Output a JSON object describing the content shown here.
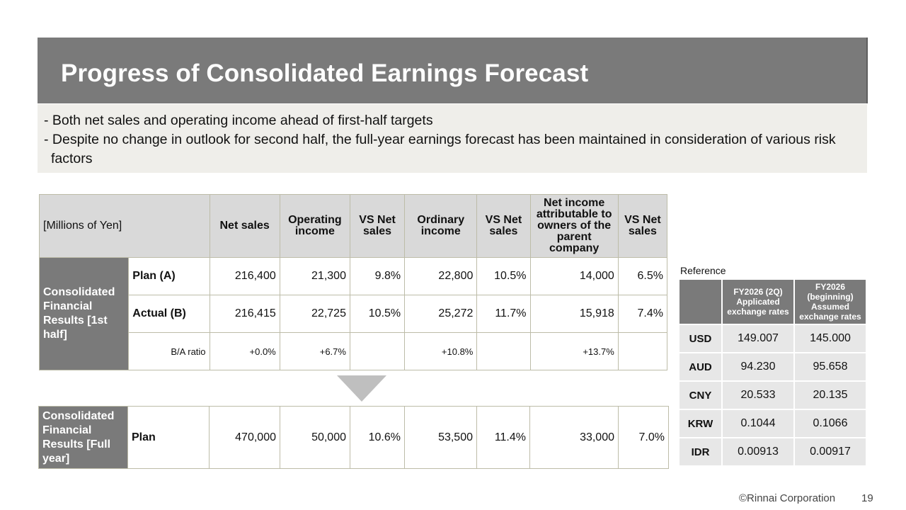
{
  "title": "Progress of Consolidated Earnings Forecast",
  "summary": [
    "- Both net sales and operating income ahead of first-half targets",
    "- Despite no change in outlook for second half, the full-year earnings forecast has been maintained in consideration of various risk factors"
  ],
  "main_table": {
    "unit": "[Millions of Yen]",
    "headers": {
      "net_sales": "Net sales",
      "operating_income": "Operating income",
      "vs1": "VS Net sales",
      "ordinary_income": "Ordinary income",
      "vs2": "VS Net sales",
      "net_income": "Net income attributable to owners of the parent company",
      "vs3": "VS Net sales"
    },
    "group_label": "Consolidated Financial Results [1st half]",
    "plan": {
      "label": "Plan (A)",
      "net_sales": "216,400",
      "op": "21,300",
      "vs1": "9.8%",
      "ord": "22,800",
      "vs2": "10.5%",
      "ni": "14,000",
      "vs3": "6.5%"
    },
    "actual": {
      "label": "Actual (B)",
      "net_sales": "216,415",
      "op": "22,725",
      "vs1": "10.5%",
      "ord": "25,272",
      "vs2": "11.7%",
      "ni": "15,918",
      "vs3": "7.4%"
    },
    "ratio": {
      "label": "B/A ratio",
      "net_sales": "+0.0%",
      "op": "+6.7%",
      "ord": "+10.8%",
      "ni": "+13.7%"
    }
  },
  "full_year": {
    "group_label": "Consolidated Financial Results [Full year]",
    "label": "Plan",
    "net_sales": "470,000",
    "op": "50,000",
    "vs1": "10.6%",
    "ord": "53,500",
    "vs2": "11.4%",
    "ni": "33,000",
    "vs3": "7.0%"
  },
  "reference": {
    "label": "Reference",
    "col1": "FY2026 (2Q) Applicated exchange rates",
    "col2": "FY2026 (beginning) Assumed exchange rates",
    "rows": [
      {
        "cur": "USD",
        "a": "149.007",
        "b": "145.000"
      },
      {
        "cur": "AUD",
        "a": "94.230",
        "b": "95.658"
      },
      {
        "cur": "CNY",
        "a": "20.533",
        "b": "20.135"
      },
      {
        "cur": "KRW",
        "a": "0.1044",
        "b": "0.1066"
      },
      {
        "cur": "IDR",
        "a": "0.00913",
        "b": "0.00917"
      }
    ]
  },
  "footer": {
    "copyright": "©Rinnai Corporation",
    "page": "19"
  }
}
